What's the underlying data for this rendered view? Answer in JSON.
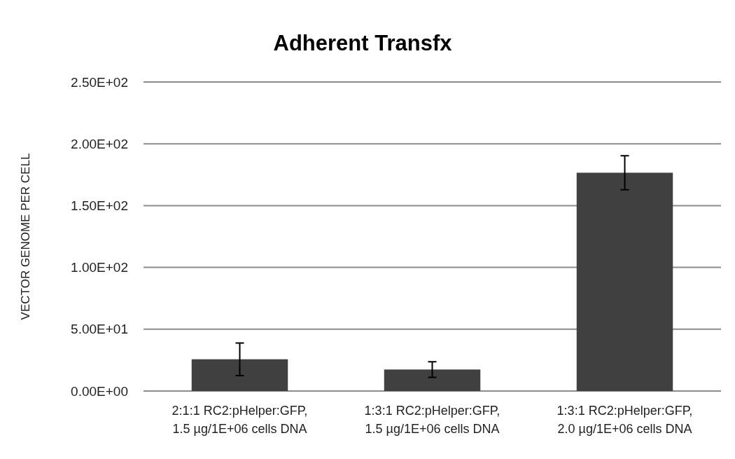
{
  "chart_data": {
    "type": "bar",
    "title": "Adherent Transfx",
    "ylabel": "VECTOR GENOME PER CELL",
    "categories": [
      "2:1:1 RC2:pHelper:GFP, 1.5 µg/1E+06 cells DNA",
      "1:3:1 RC2:pHelper:GFP, 1.5 µg/1E+06 cells DNA",
      "1:3:1 RC2:pHelper:GFP, 2.0 µg/1E+06 cells DNA"
    ],
    "values": [
      25.7,
      17.4,
      176.6
    ],
    "errors": [
      13.2,
      6.3,
      13.8
    ],
    "color": "#404040",
    "ylim": [
      0,
      250
    ],
    "yticks": [
      {
        "value": 0,
        "label": "0.00E+00"
      },
      {
        "value": 50,
        "label": "5.00E+01"
      },
      {
        "value": 100,
        "label": "1.00E+02"
      },
      {
        "value": 150,
        "label": "1.50E+02"
      },
      {
        "value": 200,
        "label": "2.00E+02"
      },
      {
        "value": 250,
        "label": "2.50E+02"
      }
    ],
    "grid": "y"
  }
}
